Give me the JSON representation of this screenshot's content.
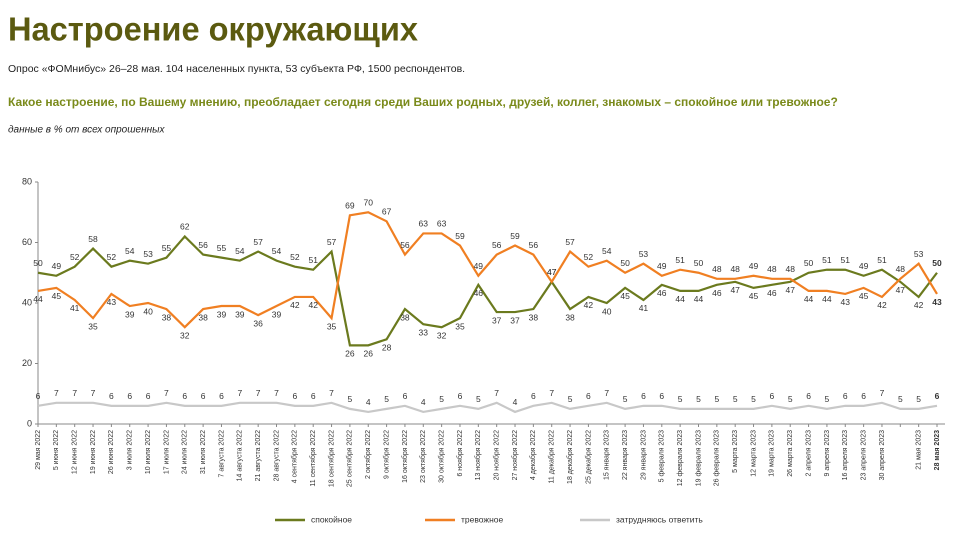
{
  "chart_data": {
    "type": "line",
    "title": "Настроение окружающих",
    "subtitle": "Опрос «ФОМнибус» 26–28 мая. 104 населенных пункта, 53 субъекта РФ, 1500 респондентов.",
    "question": "Какое настроение, по Вашему мнению, преобладает сегодня среди Ваших родных, друзей, коллег, знакомых – спокойное или тревожное?",
    "note": "данные в % от всех опрошенных",
    "categories": [
      "29 мая 2022",
      "5 июня 2022",
      "12 июня 2022",
      "19 июня 2022",
      "26 июня 2022",
      "3 июля 2022",
      "10 июля 2022",
      "17 июля 2022",
      "24 июля 2022",
      "31 июля 2022",
      "7 августа 2022",
      "14 августа 2022",
      "21 августа 2022",
      "28 августа 2022",
      "4 сентября 2022",
      "11 сентября 2022",
      "18 сентября 2022",
      "25 сентября 2022",
      "2 октября 2022",
      "9 октября 2022",
      "16 октября 2022",
      "23 октября 2022",
      "30 октября 2022",
      "6 ноября 2022",
      "13 ноября 2022",
      "20 ноября 2022",
      "27 ноября 2022",
      "4 декабря 2022",
      "11 декабря 2022",
      "18 декабря 2022",
      "25 декабря 2022",
      "15 января 2023",
      "22 января 2023",
      "29 января 2023",
      "5 февраля 2023",
      "12 февраля 2023",
      "19 февраля 2023",
      "26 февраля 2023",
      "5 марта 2023",
      "12 марта 2023",
      "19 марта 2023",
      "26 марта 2023",
      "2 апреля 2023",
      "9 апреля 2023",
      "16 апреля 2023",
      "23 апреля 2023",
      "30 апреля 2023",
      null,
      "21 мая 2023",
      "28 мая 2023"
    ],
    "series": [
      {
        "name": "спокойное",
        "color": "#6b7a1e",
        "values": [
          50,
          49,
          52,
          58,
          52,
          54,
          53,
          55,
          62,
          56,
          55,
          54,
          57,
          54,
          52,
          51,
          57,
          26,
          26,
          28,
          38,
          33,
          32,
          35,
          46,
          37,
          37,
          38,
          47,
          38,
          42,
          40,
          45,
          41,
          46,
          44,
          44,
          46,
          47,
          45,
          46,
          47,
          50,
          51,
          51,
          49,
          51,
          47,
          42,
          50
        ]
      },
      {
        "name": "тревожное",
        "color": "#f07f22",
        "values": [
          44,
          45,
          41,
          35,
          43,
          39,
          40,
          38,
          32,
          38,
          39,
          39,
          36,
          39,
          42,
          42,
          35,
          69,
          70,
          67,
          56,
          63,
          63,
          59,
          49,
          56,
          59,
          56,
          47,
          57,
          52,
          54,
          50,
          53,
          49,
          51,
          50,
          48,
          48,
          49,
          48,
          48,
          44,
          44,
          43,
          45,
          42,
          48,
          53,
          43
        ]
      },
      {
        "name": "затрудняюсь ответить",
        "color": "#c8c8c8",
        "values": [
          6,
          7,
          7,
          7,
          6,
          6,
          6,
          7,
          6,
          6,
          6,
          7,
          7,
          7,
          6,
          6,
          7,
          5,
          4,
          5,
          6,
          4,
          5,
          6,
          5,
          7,
          4,
          6,
          7,
          5,
          6,
          7,
          5,
          6,
          6,
          5,
          5,
          5,
          5,
          5,
          6,
          5,
          6,
          5,
          6,
          6,
          7,
          5,
          5,
          6
        ]
      }
    ],
    "ylim": [
      0,
      80
    ],
    "yticks": [
      0,
      20,
      40,
      60,
      80
    ]
  }
}
